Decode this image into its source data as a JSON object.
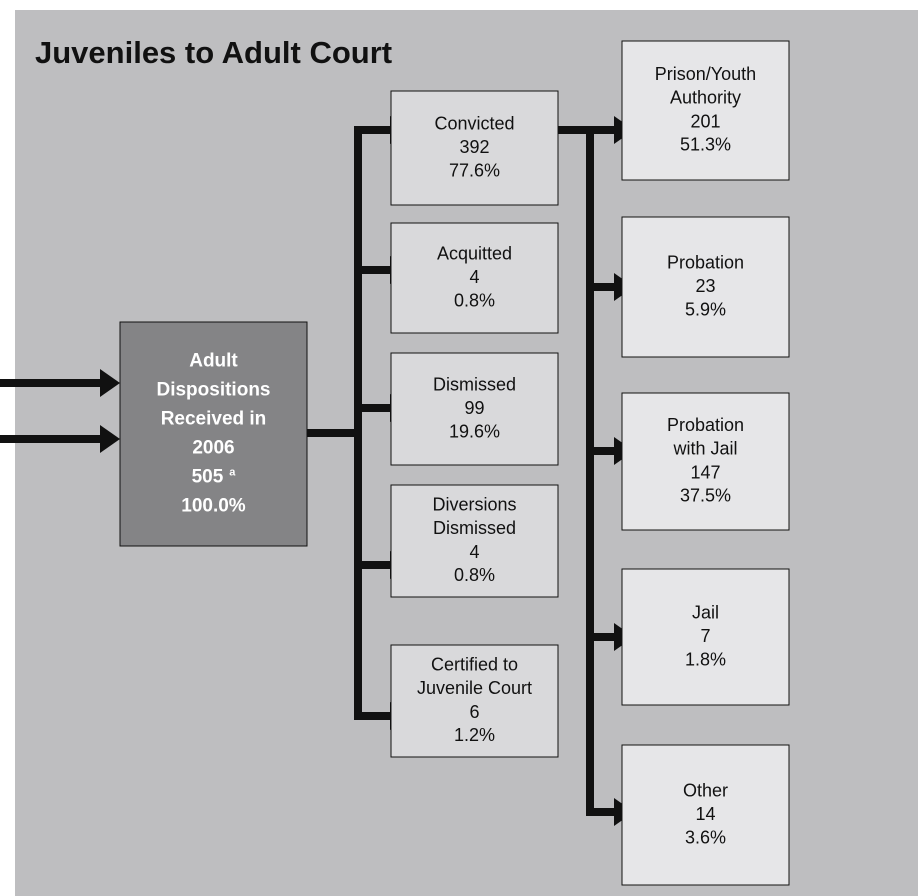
{
  "title": "Juveniles to Adult Court",
  "source": {
    "lines": [
      "Adult",
      "Dispositions",
      "Received in",
      "2006"
    ],
    "count": "505",
    "footnote": "a",
    "percent": "100.0%"
  },
  "outcomes": [
    {
      "lines": [
        "Convicted"
      ],
      "count": "392",
      "percent": "77.6%"
    },
    {
      "lines": [
        "Acquitted"
      ],
      "count": "4",
      "percent": "0.8%"
    },
    {
      "lines": [
        "Dismissed"
      ],
      "count": "99",
      "percent": "19.6%"
    },
    {
      "lines": [
        "Diversions",
        "Dismissed"
      ],
      "count": "4",
      "percent": "0.8%"
    },
    {
      "lines": [
        "Certified to",
        "Juvenile Court"
      ],
      "count": "6",
      "percent": "1.2%"
    }
  ],
  "sentences": [
    {
      "lines": [
        "Prison/Youth",
        "Authority"
      ],
      "count": "201",
      "percent": "51.3%"
    },
    {
      "lines": [
        "Probation"
      ],
      "count": "23",
      "percent": "5.9%"
    },
    {
      "lines": [
        "Probation",
        "with Jail"
      ],
      "count": "147",
      "percent": "37.5%"
    },
    {
      "lines": [
        "Jail"
      ],
      "count": "7",
      "percent": "1.8%"
    },
    {
      "lines": [
        "Other"
      ],
      "count": "14",
      "percent": "3.6%"
    }
  ]
}
